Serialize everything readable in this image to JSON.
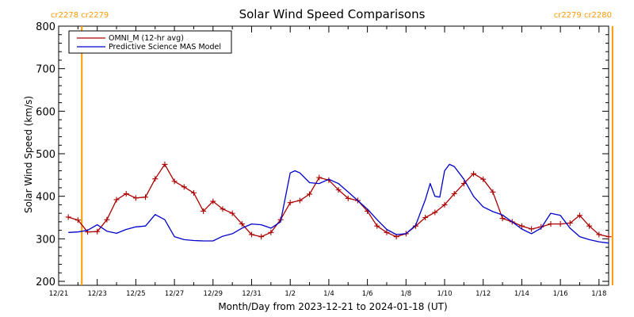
{
  "chart_data": {
    "type": "line",
    "title": "Solar Wind Speed Comparisons",
    "xlabel": "Month/Day from 2023-12-21 to 2024-01-18 (UT)",
    "ylabel": "Solar Wind Speed (km/s)",
    "ylim": [
      200,
      800
    ],
    "xlim_days": [
      0,
      28.5
    ],
    "y_ticks": [
      "200",
      "300",
      "400",
      "500",
      "600",
      "700",
      "800"
    ],
    "x_ticks": [
      {
        "day": 0,
        "label": "12/21"
      },
      {
        "day": 2,
        "label": "12/23"
      },
      {
        "day": 4,
        "label": "12/25"
      },
      {
        "day": 6,
        "label": "12/27"
      },
      {
        "day": 8,
        "label": "12/29"
      },
      {
        "day": 10,
        "label": "12/31"
      },
      {
        "day": 12,
        "label": "1/2"
      },
      {
        "day": 14,
        "label": "1/4"
      },
      {
        "day": 16,
        "label": "1/6"
      },
      {
        "day": 18,
        "label": "1/8"
      },
      {
        "day": 20,
        "label": "1/10"
      },
      {
        "day": 22,
        "label": "1/12"
      },
      {
        "day": 24,
        "label": "1/14"
      },
      {
        "day": 26,
        "label": "1/16"
      },
      {
        "day": 28,
        "label": "1/18"
      }
    ],
    "grid": false,
    "legend_position": "top-left",
    "series": [
      {
        "name": "OMNI_M (12-hr avg)",
        "color": "#aa0000",
        "marker": "plus",
        "x": [
          0.5,
          1.0,
          1.5,
          2.0,
          2.5,
          3.0,
          3.5,
          4.0,
          4.5,
          5.0,
          5.5,
          6.0,
          6.5,
          7.0,
          7.5,
          8.0,
          8.5,
          9.0,
          9.5,
          10.0,
          10.5,
          11.0,
          11.5,
          12.0,
          12.5,
          13.0,
          13.5,
          14.0,
          14.5,
          15.0,
          15.5,
          16.0,
          16.5,
          17.0,
          17.5,
          18.0,
          18.5,
          19.0,
          19.5,
          20.0,
          20.5,
          21.0,
          21.5,
          22.0,
          22.5,
          23.0,
          23.5,
          24.0,
          24.5,
          25.0,
          25.5,
          26.0,
          26.5,
          27.0,
          27.5,
          28.0,
          28.5
        ],
        "y": [
          351,
          344,
          316,
          317,
          345,
          392,
          406,
          396,
          398,
          441,
          475,
          435,
          422,
          408,
          365,
          388,
          370,
          360,
          335,
          310,
          305,
          315,
          345,
          385,
          390,
          405,
          444,
          438,
          415,
          395,
          390,
          365,
          330,
          315,
          305,
          312,
          330,
          350,
          362,
          380,
          406,
          430,
          453,
          440,
          410,
          348,
          340,
          330,
          323,
          328,
          335,
          335,
          337,
          355,
          330,
          310,
          305
        ]
      },
      {
        "name": "Predictive Science MAS Model",
        "color": "#0000cc",
        "marker": "none",
        "x": [
          0.5,
          1.0,
          1.5,
          2.0,
          2.5,
          3.0,
          3.5,
          4.0,
          4.5,
          5.0,
          5.5,
          6.0,
          6.5,
          7.0,
          7.5,
          8.0,
          8.5,
          9.0,
          9.5,
          10.0,
          10.5,
          11.0,
          11.5,
          12.0,
          12.25,
          12.5,
          13.0,
          13.5,
          14.0,
          14.5,
          15.0,
          15.5,
          16.0,
          16.5,
          17.0,
          17.5,
          18.0,
          18.5,
          19.0,
          19.25,
          19.5,
          19.75,
          20.0,
          20.25,
          20.5,
          21.0,
          21.5,
          22.0,
          22.5,
          23.0,
          23.5,
          24.0,
          24.5,
          25.0,
          25.5,
          26.0,
          26.5,
          27.0,
          27.5,
          28.0,
          28.5
        ],
        "y": [
          315,
          316,
          320,
          333,
          318,
          313,
          322,
          328,
          330,
          357,
          345,
          305,
          298,
          296,
          295,
          295,
          306,
          312,
          325,
          335,
          333,
          325,
          340,
          455,
          460,
          455,
          432,
          430,
          440,
          430,
          410,
          390,
          370,
          345,
          322,
          310,
          312,
          332,
          392,
          430,
          400,
          398,
          460,
          475,
          470,
          440,
          400,
          375,
          364,
          356,
          340,
          323,
          312,
          325,
          360,
          355,
          325,
          305,
          298,
          293,
          290
        ]
      }
    ],
    "annotations": [
      {
        "text": "cr2278 cr2279",
        "color": "#ff9900",
        "position": "top-left"
      },
      {
        "text": "cr2279 cr2280",
        "color": "#ff9900",
        "position": "top-right"
      }
    ],
    "vertical_markers": [
      {
        "day": 1.2,
        "color": "#ff9900"
      },
      {
        "day": 28.7,
        "color": "#ff9900"
      }
    ]
  }
}
